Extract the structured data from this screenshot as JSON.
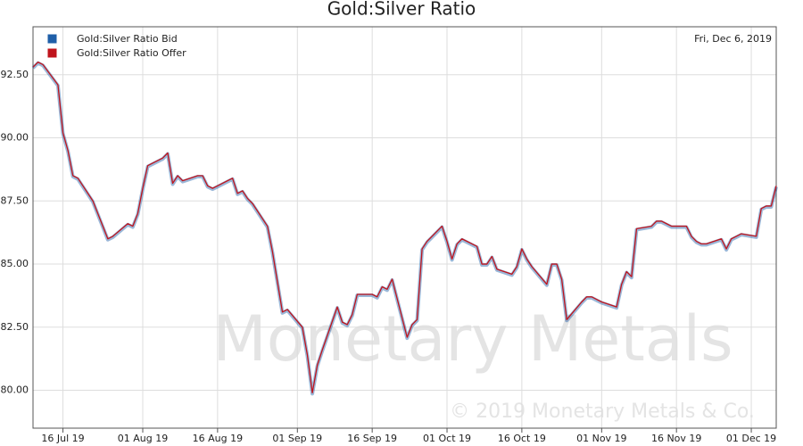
{
  "chart_data": {
    "type": "line",
    "title": "Gold:Silver Ratio",
    "date_label": "Fri, Dec 6, 2019",
    "watermark": "Monetary Metals",
    "copyright": "© 2019 Monetary Metals & Co.",
    "legend": "top-left",
    "grid": true,
    "xlim": [
      "2019-07-10",
      "2019-12-06"
    ],
    "xticks": [
      {
        "value": "2019-07-16",
        "label": "16 Jul 19"
      },
      {
        "value": "2019-08-01",
        "label": "01 Aug 19"
      },
      {
        "value": "2019-08-16",
        "label": "16 Aug 19"
      },
      {
        "value": "2019-09-01",
        "label": "01 Sep 19"
      },
      {
        "value": "2019-09-16",
        "label": "16 Sep 19"
      },
      {
        "value": "2019-10-01",
        "label": "01 Oct 19"
      },
      {
        "value": "2019-10-16",
        "label": "16 Oct 19"
      },
      {
        "value": "2019-11-01",
        "label": "01 Nov 19"
      },
      {
        "value": "2019-11-16",
        "label": "16 Nov 19"
      },
      {
        "value": "2019-12-01",
        "label": "01 Dec 19"
      }
    ],
    "ylim": [
      78.5,
      94.4
    ],
    "yticks": [
      {
        "value": 80,
        "label": "80.00"
      },
      {
        "value": 82.5,
        "label": "82.50"
      },
      {
        "value": 85,
        "label": "85.00"
      },
      {
        "value": 87.5,
        "label": "87.50"
      },
      {
        "value": 90,
        "label": "90.00"
      },
      {
        "value": 92.5,
        "label": "92.50"
      }
    ],
    "x": [
      "2019-07-10",
      "2019-07-11",
      "2019-07-12",
      "2019-07-15",
      "2019-07-16",
      "2019-07-17",
      "2019-07-18",
      "2019-07-19",
      "2019-07-22",
      "2019-07-23",
      "2019-07-24",
      "2019-07-25",
      "2019-07-26",
      "2019-07-29",
      "2019-07-30",
      "2019-07-31",
      "2019-08-01",
      "2019-08-02",
      "2019-08-05",
      "2019-08-06",
      "2019-08-07",
      "2019-08-08",
      "2019-08-09",
      "2019-08-12",
      "2019-08-13",
      "2019-08-14",
      "2019-08-15",
      "2019-08-16",
      "2019-08-19",
      "2019-08-20",
      "2019-08-21",
      "2019-08-22",
      "2019-08-23",
      "2019-08-26",
      "2019-08-27",
      "2019-08-28",
      "2019-08-29",
      "2019-08-30",
      "2019-09-02",
      "2019-09-03",
      "2019-09-04",
      "2019-09-05",
      "2019-09-06",
      "2019-09-09",
      "2019-09-10",
      "2019-09-11",
      "2019-09-12",
      "2019-09-13",
      "2019-09-16",
      "2019-09-17",
      "2019-09-18",
      "2019-09-19",
      "2019-09-20",
      "2019-09-23",
      "2019-09-24",
      "2019-09-25",
      "2019-09-26",
      "2019-09-27",
      "2019-09-30",
      "2019-10-01",
      "2019-10-02",
      "2019-10-03",
      "2019-10-04",
      "2019-10-07",
      "2019-10-08",
      "2019-10-09",
      "2019-10-10",
      "2019-10-11",
      "2019-10-14",
      "2019-10-15",
      "2019-10-16",
      "2019-10-17",
      "2019-10-18",
      "2019-10-21",
      "2019-10-22",
      "2019-10-23",
      "2019-10-24",
      "2019-10-25",
      "2019-10-28",
      "2019-10-29",
      "2019-10-30",
      "2019-10-31",
      "2019-11-01",
      "2019-11-04",
      "2019-11-05",
      "2019-11-06",
      "2019-11-07",
      "2019-11-08",
      "2019-11-11",
      "2019-11-12",
      "2019-11-13",
      "2019-11-14",
      "2019-11-15",
      "2019-11-18",
      "2019-11-19",
      "2019-11-20",
      "2019-11-21",
      "2019-11-22",
      "2019-11-25",
      "2019-11-26",
      "2019-11-27",
      "2019-11-28",
      "2019-11-29",
      "2019-12-02",
      "2019-12-03",
      "2019-12-04",
      "2019-12-05",
      "2019-12-06"
    ],
    "series": [
      {
        "name": "Gold:Silver Ratio Bid",
        "color": "#1f5fa8",
        "values": [
          92.8,
          93.0,
          92.9,
          92.1,
          90.2,
          89.5,
          88.5,
          88.4,
          87.5,
          87.0,
          86.5,
          86.0,
          86.1,
          86.6,
          86.5,
          87.0,
          88.0,
          88.9,
          89.2,
          89.4,
          88.2,
          88.5,
          88.3,
          88.5,
          88.5,
          88.1,
          88.0,
          88.1,
          88.4,
          87.8,
          87.9,
          87.6,
          87.4,
          86.5,
          85.5,
          84.3,
          83.1,
          83.2,
          82.5,
          81.4,
          79.9,
          81.0,
          81.6,
          83.3,
          82.7,
          82.6,
          83.0,
          83.8,
          83.8,
          83.7,
          84.1,
          84.0,
          84.4,
          82.1,
          82.6,
          82.8,
          85.6,
          85.9,
          86.5,
          85.9,
          85.2,
          85.8,
          86.0,
          85.7,
          85.0,
          85.0,
          85.3,
          84.8,
          84.6,
          84.9,
          85.6,
          85.2,
          84.9,
          84.2,
          85.0,
          85.0,
          84.4,
          82.8,
          83.5,
          83.7,
          83.7,
          83.6,
          83.5,
          83.3,
          84.2,
          84.7,
          84.5,
          86.4,
          86.5,
          86.7,
          86.7,
          86.6,
          86.5,
          86.5,
          86.1,
          85.9,
          85.8,
          85.8,
          86.0,
          85.6,
          86.0,
          86.1,
          86.2,
          86.1,
          87.2,
          87.3,
          87.3,
          88.1
        ]
      },
      {
        "name": "Gold:Silver Ratio Offer",
        "color": "#c0141c",
        "values": [
          92.8,
          93.0,
          92.9,
          92.1,
          90.2,
          89.5,
          88.5,
          88.4,
          87.5,
          87.0,
          86.5,
          86.0,
          86.1,
          86.6,
          86.5,
          87.0,
          88.0,
          88.9,
          89.2,
          89.4,
          88.2,
          88.5,
          88.3,
          88.5,
          88.5,
          88.1,
          88.0,
          88.1,
          88.4,
          87.8,
          87.9,
          87.6,
          87.4,
          86.5,
          85.5,
          84.3,
          83.1,
          83.2,
          82.5,
          81.4,
          79.9,
          81.0,
          81.6,
          83.3,
          82.7,
          82.6,
          83.0,
          83.8,
          83.8,
          83.7,
          84.1,
          84.0,
          84.4,
          82.1,
          82.6,
          82.8,
          85.6,
          85.9,
          86.5,
          85.9,
          85.2,
          85.8,
          86.0,
          85.7,
          85.0,
          85.0,
          85.3,
          84.8,
          84.6,
          84.9,
          85.6,
          85.2,
          84.9,
          84.2,
          85.0,
          85.0,
          84.4,
          82.8,
          83.5,
          83.7,
          83.7,
          83.6,
          83.5,
          83.3,
          84.2,
          84.7,
          84.5,
          86.4,
          86.5,
          86.7,
          86.7,
          86.6,
          86.5,
          86.5,
          86.1,
          85.9,
          85.8,
          85.8,
          86.0,
          85.6,
          86.0,
          86.1,
          86.2,
          86.1,
          87.2,
          87.3,
          87.3,
          88.1
        ]
      }
    ]
  }
}
